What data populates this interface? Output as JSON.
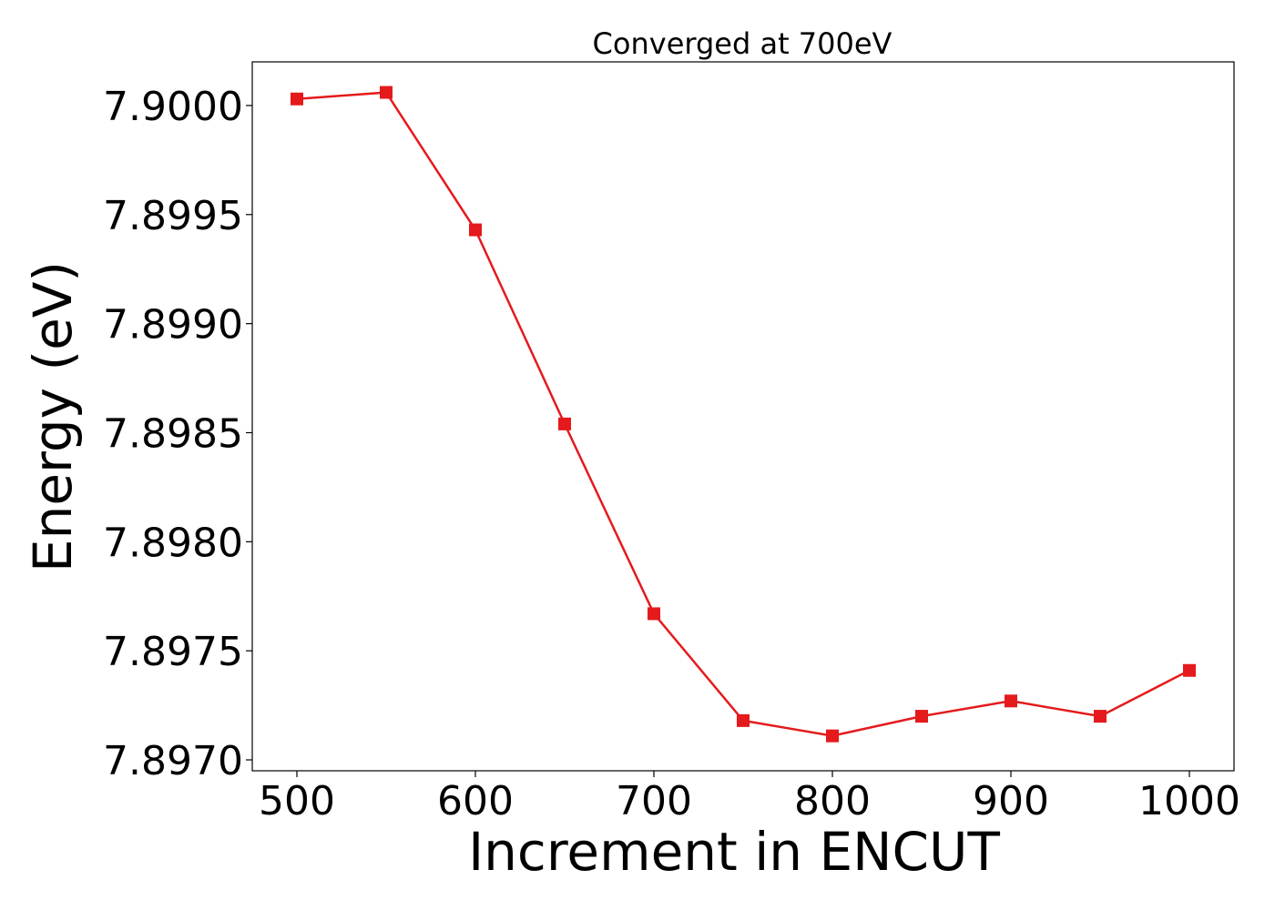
{
  "chart_data": {
    "type": "line",
    "title": "Converged at 700eV",
    "xlabel": "Increment in ENCUT",
    "ylabel": "Energy (eV)",
    "xlim": [
      475,
      1025
    ],
    "ylim": [
      7.89695,
      7.9002
    ],
    "xticks": [
      500,
      600,
      700,
      800,
      900,
      1000
    ],
    "yticks": [
      7.897,
      7.8975,
      7.898,
      7.8985,
      7.899,
      7.8995,
      7.9
    ],
    "ytick_labels": [
      "7.8970",
      "7.8975",
      "7.8980",
      "7.8985",
      "7.8990",
      "7.8995",
      "7.9000"
    ],
    "grid": false,
    "series": [
      {
        "color": "#e41a1c",
        "marker": "square",
        "x": [
          500,
          550,
          600,
          650,
          700,
          750,
          800,
          850,
          900,
          950,
          1000
        ],
        "y": [
          7.90003,
          7.90006,
          7.89943,
          7.89854,
          7.89767,
          7.89718,
          7.89711,
          7.8972,
          7.89727,
          7.8972,
          7.89741
        ]
      }
    ]
  }
}
